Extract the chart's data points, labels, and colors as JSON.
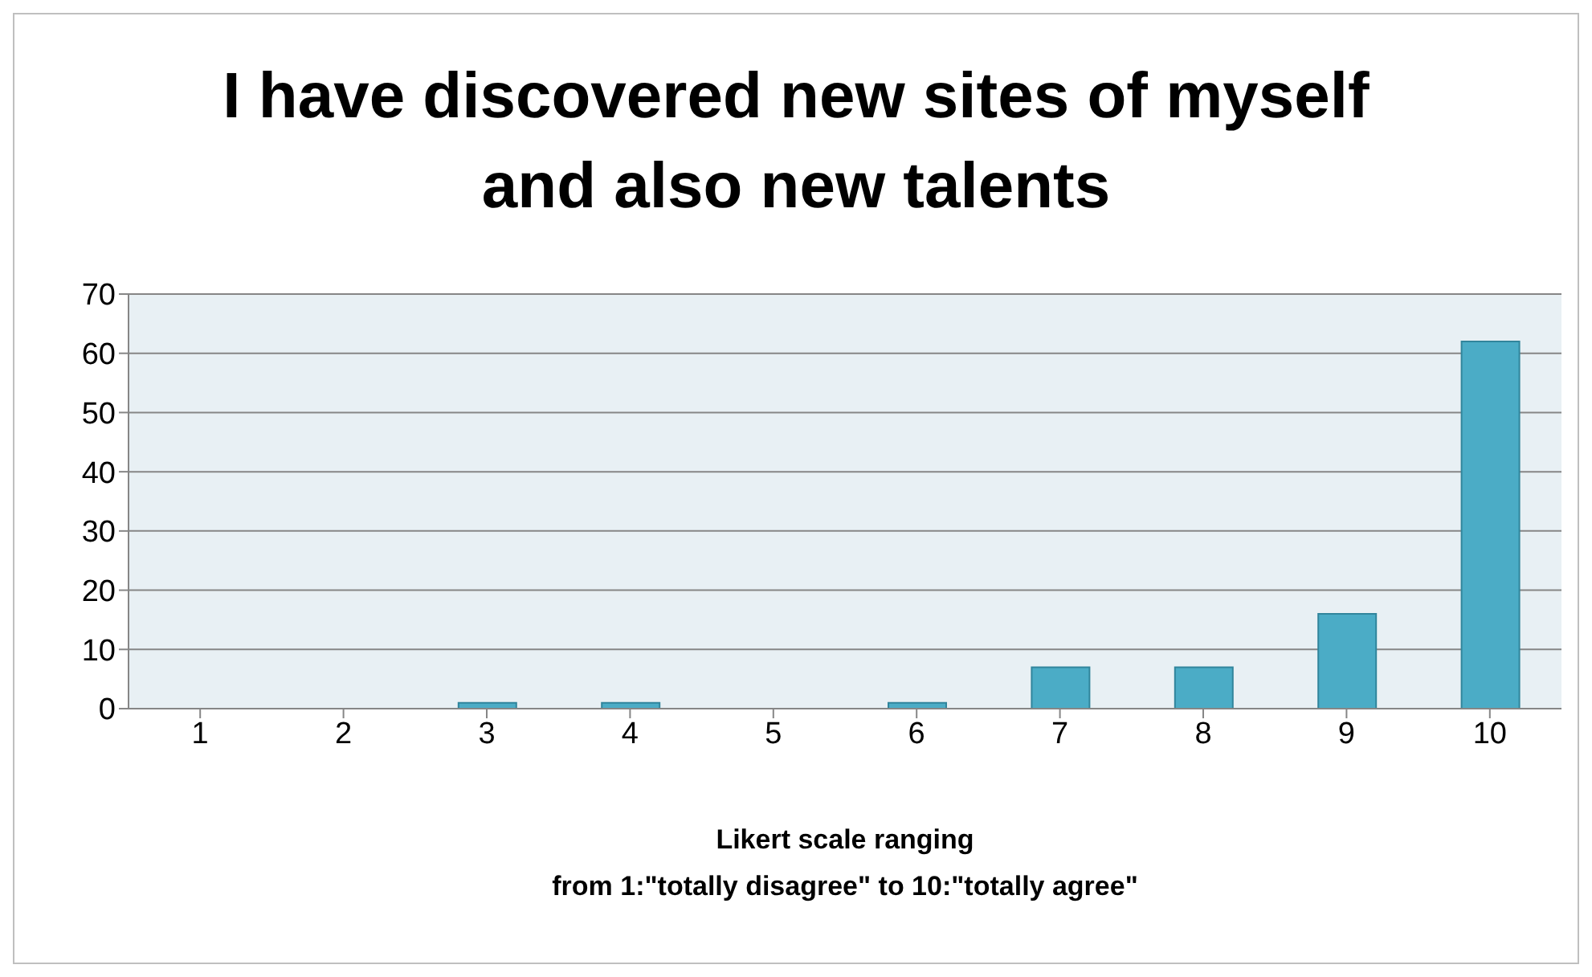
{
  "chart_data": {
    "type": "bar",
    "title": "I have discovered new sites of myself\nand also new talents",
    "xlabel": "Likert scale ranging\nfrom 1:\"totally disagree\" to 10:\"totally agree\"",
    "categories": [
      "1",
      "2",
      "3",
      "4",
      "5",
      "6",
      "7",
      "8",
      "9",
      "10"
    ],
    "values": [
      0,
      0,
      1,
      1,
      0,
      1,
      7,
      7,
      16,
      62
    ],
    "color": "#4bacc6",
    "ylim": [
      0,
      70
    ],
    "yticks": [
      0,
      10,
      20,
      30,
      40,
      50,
      60,
      70
    ],
    "grid": "y"
  }
}
